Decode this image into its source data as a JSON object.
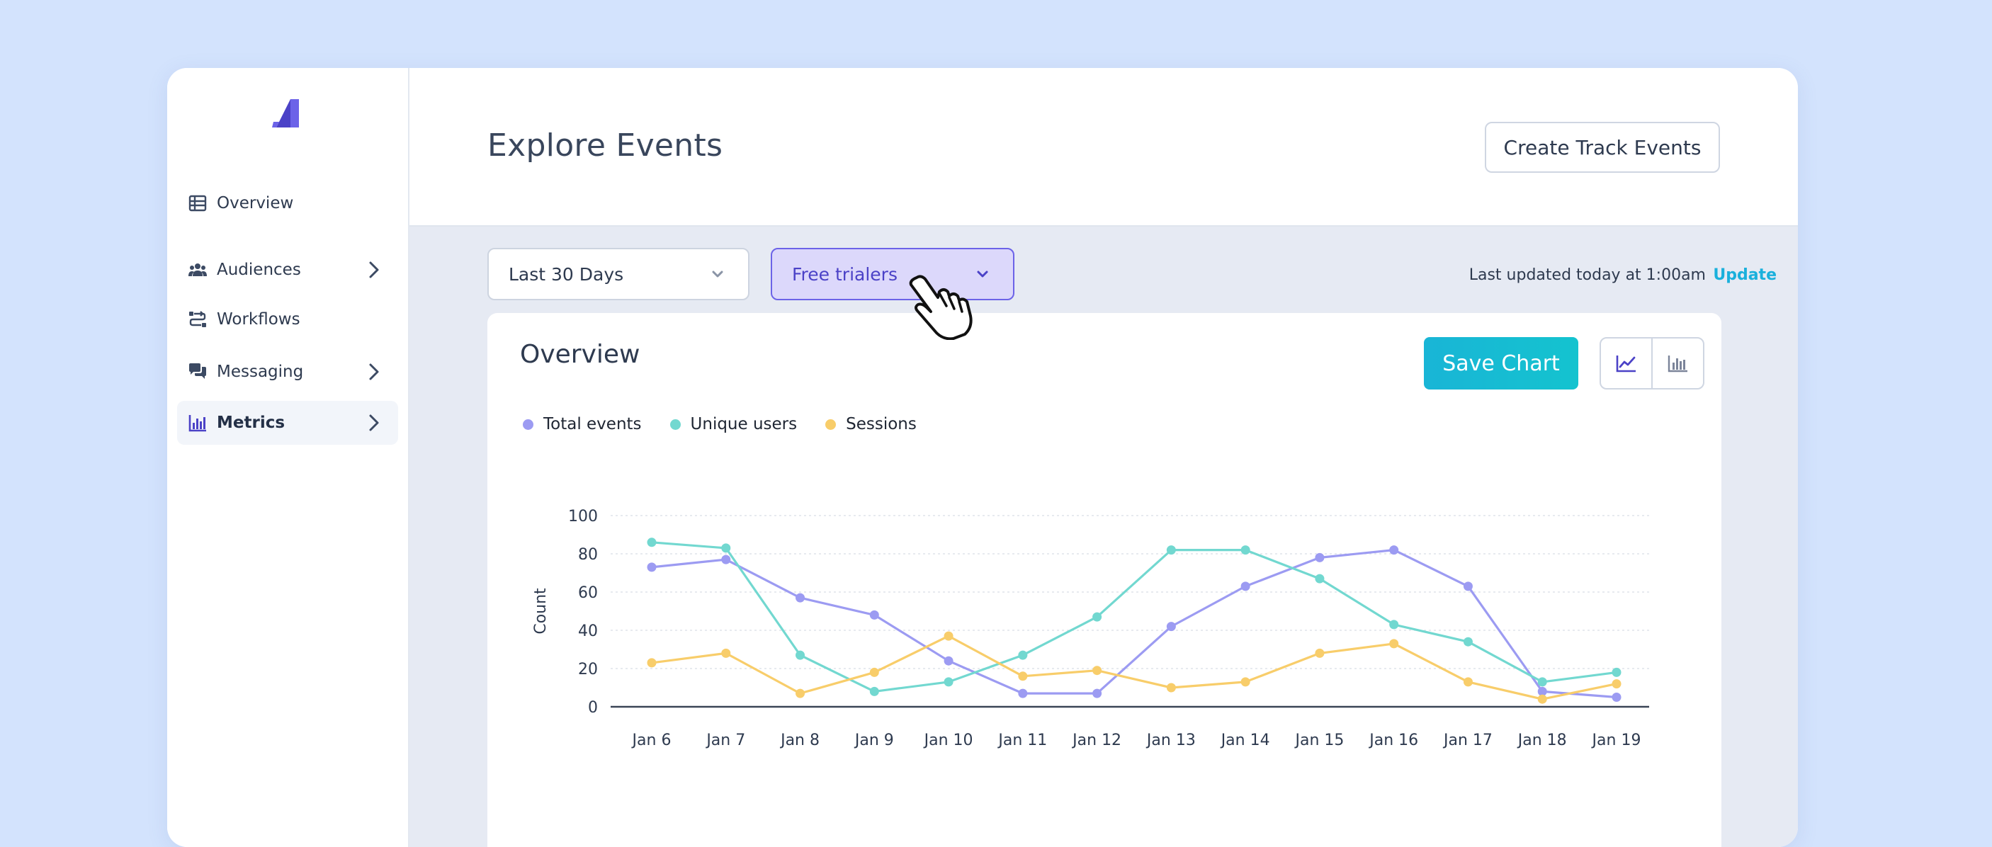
{
  "sidebar": {
    "items": [
      {
        "label": "Overview",
        "icon": "table-icon",
        "has_chevron": false
      },
      {
        "label": "Audiences",
        "icon": "users-icon",
        "has_chevron": true
      },
      {
        "label": "Workflows",
        "icon": "workflow-icon",
        "has_chevron": false
      },
      {
        "label": "Messaging",
        "icon": "chat-icon",
        "has_chevron": true
      },
      {
        "label": "Metrics",
        "icon": "bar-chart-icon",
        "has_chevron": true,
        "active": true
      }
    ]
  },
  "header": {
    "title": "Explore Events",
    "create_button": "Create Track Events"
  },
  "toolbar": {
    "date_range": "Last 30 Days",
    "segment": "Free trialers",
    "last_updated": "Last updated today at 1:00am",
    "update_link": "Update"
  },
  "card": {
    "title": "Overview",
    "save_button": "Save Chart",
    "view_modes": [
      "line-chart-icon",
      "bar-chart-icon"
    ]
  },
  "colors": {
    "accent": "#6c63e8",
    "teal": "#19b5d6",
    "total_events": "#9c9bf2",
    "unique_users": "#72d8d0",
    "sessions": "#f8cd6a"
  },
  "chart_data": {
    "type": "line",
    "title": "",
    "xlabel": "",
    "ylabel": "Count",
    "ylim": [
      0,
      100
    ],
    "yticks": [
      0,
      20,
      40,
      60,
      80,
      100
    ],
    "grid": true,
    "legend_position": "top-left",
    "categories": [
      "Jan 6",
      "Jan 7",
      "Jan 8",
      "Jan 9",
      "Jan 10",
      "Jan 11",
      "Jan 12",
      "Jan 13",
      "Jan 14",
      "Jan 15",
      "Jan 16",
      "Jan 17",
      "Jan 18",
      "Jan 19"
    ],
    "series": [
      {
        "name": "Total events",
        "color": "#9c9bf2",
        "values": [
          73,
          77,
          57,
          48,
          24,
          7,
          7,
          42,
          63,
          78,
          82,
          63,
          8,
          5
        ]
      },
      {
        "name": "Unique users",
        "color": "#72d8d0",
        "values": [
          86,
          83,
          27,
          8,
          13,
          27,
          47,
          82,
          82,
          67,
          43,
          34,
          13,
          18
        ]
      },
      {
        "name": "Sessions",
        "color": "#f8cd6a",
        "values": [
          23,
          28,
          7,
          18,
          37,
          16,
          19,
          10,
          13,
          28,
          33,
          13,
          4,
          12
        ]
      }
    ]
  }
}
